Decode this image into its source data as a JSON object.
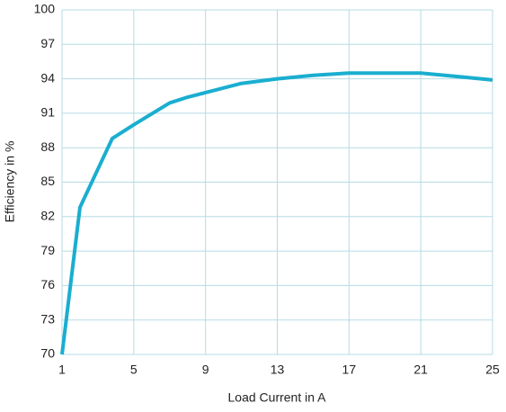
{
  "chart_data": {
    "type": "line",
    "x_label": "Load Current in A",
    "y_label": "Efficiency in %",
    "x": [
      1,
      2,
      3.8,
      5,
      7,
      8,
      9,
      11,
      13,
      15,
      17,
      19,
      21,
      23,
      25
    ],
    "series": [
      {
        "name": "Efficiency",
        "color": "#1aaed0",
        "values": [
          70,
          82.8,
          88.8,
          90,
          91.9,
          92.4,
          92.8,
          93.6,
          94,
          94.3,
          94.5,
          94.5,
          94.5,
          94.2,
          93.9
        ]
      }
    ],
    "xlim": [
      1,
      25
    ],
    "xticks": [
      1,
      5,
      9,
      13,
      17,
      21,
      25
    ],
    "ylim": [
      70,
      100
    ],
    "yticks": [
      70,
      73,
      76,
      79,
      82,
      85,
      88,
      91,
      94,
      97,
      100
    ],
    "grid": true
  }
}
